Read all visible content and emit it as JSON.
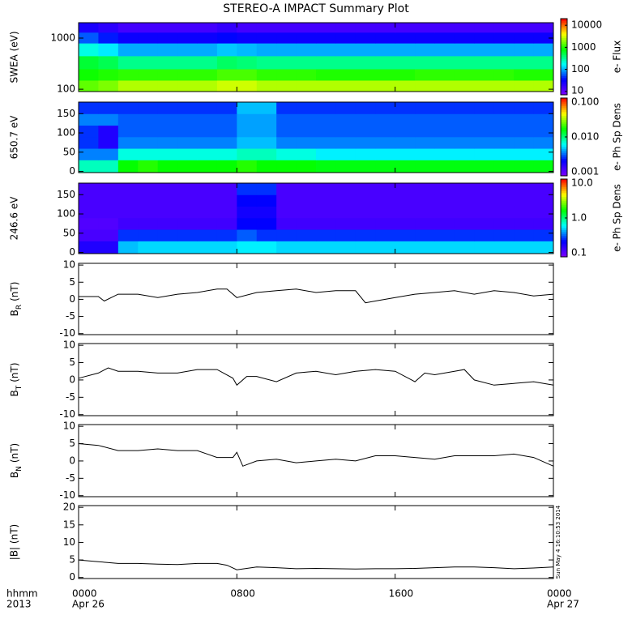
{
  "title": "STEREO-A IMPACT Summary Plot",
  "colormap": [
    "#8000ff",
    "#0000ff",
    "#00ffff",
    "#00ff00",
    "#ffff00",
    "#ff0000"
  ],
  "x_axis": {
    "xlim": [
      0,
      24
    ],
    "xticks": [
      {
        "value": 0,
        "label": "0000"
      },
      {
        "value": 8,
        "label": "0800"
      },
      {
        "value": 16,
        "label": "1600"
      },
      {
        "value": 24,
        "label": "0000"
      }
    ],
    "dates": [
      {
        "value": 0,
        "label": "Apr 26"
      },
      {
        "value": 24,
        "label": "Apr 27"
      }
    ],
    "row_labels": [
      "hhmm",
      "2013"
    ]
  },
  "timestamp": "Sun May  4 16:10:53 2014",
  "chart_data": [
    {
      "type": "heatmap",
      "ylabel": "SWEA (eV)",
      "log_y": true,
      "ylim": [
        90,
        2000
      ],
      "yticks": [
        100,
        1000
      ],
      "x_bins": [
        0,
        1,
        2,
        3,
        4,
        5,
        6,
        7,
        8,
        9,
        10,
        11,
        12,
        13,
        14,
        15,
        16,
        17,
        18,
        19,
        20,
        21,
        22,
        23,
        24
      ],
      "y_bins": [
        90,
        150,
        250,
        450,
        800,
        1300,
        2000
      ],
      "colorbar": {
        "label": "e- Flux",
        "lim": [
          7,
          20000
        ],
        "ticks": [
          10,
          100,
          1000,
          10000
        ]
      },
      "values": [
        [
          1500,
          1800,
          2500,
          2500,
          2500,
          2500,
          2500,
          3000,
          3000,
          2500,
          2500,
          2500,
          2500,
          2500,
          2500,
          2500,
          2500,
          2500,
          2500,
          2500,
          2500,
          2500,
          2500,
          2500
        ],
        [
          900,
          1000,
          1100,
          1100,
          1100,
          1100,
          1100,
          1300,
          1300,
          1100,
          1100,
          1100,
          1000,
          1000,
          1000,
          1000,
          1000,
          1100,
          1100,
          1100,
          1100,
          1100,
          1000,
          1000
        ],
        [
          600,
          500,
          350,
          350,
          350,
          350,
          350,
          450,
          400,
          350,
          350,
          350,
          350,
          350,
          350,
          350,
          350,
          350,
          350,
          350,
          350,
          350,
          350,
          350
        ],
        [
          200,
          150,
          100,
          100,
          100,
          100,
          100,
          120,
          110,
          100,
          100,
          100,
          100,
          100,
          100,
          100,
          100,
          100,
          100,
          100,
          100,
          100,
          100,
          100
        ],
        [
          60,
          40,
          30,
          30,
          30,
          30,
          30,
          35,
          30,
          30,
          30,
          30,
          30,
          30,
          30,
          30,
          30,
          30,
          30,
          30,
          30,
          30,
          30,
          30
        ],
        [
          25,
          20,
          15,
          15,
          15,
          15,
          15,
          18,
          15,
          15,
          15,
          15,
          15,
          15,
          15,
          15,
          15,
          15,
          15,
          15,
          15,
          15,
          15,
          15
        ]
      ]
    },
    {
      "type": "heatmap",
      "ylabel": "650.7 eV",
      "ylim": [
        -3,
        180
      ],
      "yticks": [
        0,
        50,
        100,
        150
      ],
      "x_bins": [
        0,
        1,
        2,
        3,
        4,
        5,
        6,
        7,
        8,
        9,
        10,
        11,
        12,
        13,
        14,
        15,
        16,
        17,
        18,
        19,
        20,
        21,
        22,
        23,
        24
      ],
      "y_bins": [
        -3,
        30,
        60,
        90,
        120,
        150,
        180
      ],
      "colorbar": {
        "label": "e- Ph Sp Dens",
        "lim": [
          0.001,
          0.1
        ],
        "ticks": [
          {
            "value": 0.001,
            "label": "0.001"
          },
          {
            "value": 0.01,
            "label": "0.010"
          },
          {
            "value": 0.1,
            "label": "0.100"
          }
        ]
      },
      "values": [
        [
          0.008,
          0.008,
          0.016,
          0.018,
          0.016,
          0.016,
          0.016,
          0.016,
          0.018,
          0.016,
          0.016,
          0.016,
          0.015,
          0.015,
          0.015,
          0.015,
          0.015,
          0.015,
          0.015,
          0.015,
          0.015,
          0.015,
          0.015,
          0.015
        ],
        [
          0.004,
          0.004,
          0.007,
          0.007,
          0.007,
          0.007,
          0.007,
          0.007,
          0.008,
          0.008,
          0.007,
          0.007,
          0.006,
          0.006,
          0.006,
          0.006,
          0.006,
          0.006,
          0.006,
          0.006,
          0.006,
          0.006,
          0.006,
          0.006
        ],
        [
          0.003,
          0.002,
          0.004,
          0.004,
          0.004,
          0.004,
          0.004,
          0.004,
          0.005,
          0.005,
          0.004,
          0.004,
          0.004,
          0.004,
          0.004,
          0.004,
          0.004,
          0.004,
          0.004,
          0.004,
          0.004,
          0.004,
          0.004,
          0.004
        ],
        [
          0.003,
          0.002,
          0.0035,
          0.0035,
          0.0035,
          0.0035,
          0.0035,
          0.0035,
          0.0045,
          0.0045,
          0.0035,
          0.0035,
          0.0035,
          0.0035,
          0.0035,
          0.0035,
          0.0035,
          0.0035,
          0.0035,
          0.0035,
          0.0035,
          0.0035,
          0.0035,
          0.0035
        ],
        [
          0.004,
          0.004,
          0.0035,
          0.0035,
          0.0035,
          0.0035,
          0.0035,
          0.0035,
          0.0045,
          0.0045,
          0.0035,
          0.0035,
          0.0035,
          0.0035,
          0.0035,
          0.0035,
          0.0035,
          0.0035,
          0.0035,
          0.0035,
          0.0035,
          0.0035,
          0.0035,
          0.0035
        ],
        [
          0.003,
          0.003,
          0.003,
          0.003,
          0.003,
          0.003,
          0.003,
          0.003,
          0.005,
          0.005,
          0.003,
          0.003,
          0.003,
          0.003,
          0.003,
          0.003,
          0.003,
          0.003,
          0.003,
          0.003,
          0.003,
          0.003,
          0.003,
          0.003
        ]
      ]
    },
    {
      "type": "heatmap",
      "ylabel": "246.6 eV",
      "ylim": [
        -3,
        180
      ],
      "yticks": [
        0,
        50,
        100,
        150
      ],
      "x_bins": [
        0,
        1,
        2,
        3,
        4,
        5,
        6,
        7,
        8,
        9,
        10,
        11,
        12,
        13,
        14,
        15,
        16,
        17,
        18,
        19,
        20,
        21,
        22,
        23,
        24
      ],
      "y_bins": [
        -3,
        30,
        60,
        90,
        120,
        150,
        180
      ],
      "colorbar": {
        "label": "e- Ph Sp Dens",
        "lim": [
          0.1,
          10
        ],
        "ticks": [
          0.1,
          {
            "value": 1,
            "label": "1.0"
          },
          {
            "value": 10,
            "label": "10.0"
          }
        ]
      },
      "values": [
        [
          0.2,
          0.2,
          0.5,
          0.55,
          0.55,
          0.55,
          0.55,
          0.55,
          0.6,
          0.6,
          0.55,
          0.55,
          0.55,
          0.55,
          0.55,
          0.55,
          0.55,
          0.55,
          0.55,
          0.55,
          0.55,
          0.55,
          0.55,
          0.55
        ],
        [
          0.15,
          0.15,
          0.3,
          0.3,
          0.3,
          0.3,
          0.3,
          0.3,
          0.35,
          0.3,
          0.3,
          0.3,
          0.3,
          0.3,
          0.3,
          0.3,
          0.3,
          0.3,
          0.3,
          0.3,
          0.3,
          0.3,
          0.3,
          0.3
        ],
        [
          0.14,
          0.14,
          0.16,
          0.16,
          0.16,
          0.16,
          0.16,
          0.16,
          0.25,
          0.25,
          0.16,
          0.16,
          0.16,
          0.16,
          0.16,
          0.16,
          0.16,
          0.16,
          0.16,
          0.16,
          0.16,
          0.16,
          0.16,
          0.16
        ],
        [
          0.15,
          0.15,
          0.15,
          0.15,
          0.15,
          0.15,
          0.15,
          0.15,
          0.22,
          0.22,
          0.15,
          0.15,
          0.15,
          0.15,
          0.15,
          0.15,
          0.15,
          0.15,
          0.15,
          0.15,
          0.15,
          0.15,
          0.15,
          0.15
        ],
        [
          0.15,
          0.15,
          0.15,
          0.15,
          0.15,
          0.15,
          0.15,
          0.15,
          0.25,
          0.25,
          0.15,
          0.15,
          0.15,
          0.15,
          0.15,
          0.15,
          0.15,
          0.15,
          0.15,
          0.15,
          0.15,
          0.15,
          0.15,
          0.15
        ],
        [
          0.15,
          0.15,
          0.15,
          0.15,
          0.15,
          0.15,
          0.15,
          0.15,
          0.3,
          0.3,
          0.15,
          0.15,
          0.15,
          0.15,
          0.15,
          0.15,
          0.15,
          0.15,
          0.15,
          0.15,
          0.15,
          0.15,
          0.15,
          0.15
        ]
      ]
    },
    {
      "type": "line",
      "ylabel": {
        "main": "B",
        "sub": "R",
        "unit": "(nT)"
      },
      "ylim": [
        -10.3,
        10.5
      ],
      "yticks": [
        -10,
        -5,
        0,
        5,
        10
      ],
      "color": "#000000",
      "x": [
        0,
        1,
        1.3,
        2,
        3,
        4,
        5,
        6,
        7,
        7.5,
        8,
        9,
        10,
        11,
        12,
        13,
        14,
        14.5,
        15,
        16,
        17,
        18,
        19,
        20,
        21,
        22,
        23,
        24
      ],
      "values": [
        0.8,
        0.8,
        -0.5,
        1.5,
        1.5,
        0.5,
        1.5,
        2,
        3,
        3,
        0.5,
        2,
        2.5,
        3,
        2,
        2.5,
        2.5,
        -1,
        -0.5,
        0.5,
        1.5,
        2,
        2.5,
        1.5,
        2.5,
        2,
        1,
        1.5
      ]
    },
    {
      "type": "line",
      "ylabel": {
        "main": "B",
        "sub": "T",
        "unit": "(nT)"
      },
      "ylim": [
        -10.3,
        10.5
      ],
      "yticks": [
        -10,
        -5,
        0,
        5,
        10
      ],
      "color": "#000000",
      "x": [
        0,
        1,
        1.5,
        2,
        3,
        4,
        5,
        6,
        7,
        7.8,
        8,
        8.5,
        9,
        10,
        11,
        12,
        13,
        14,
        15,
        16,
        17,
        17.5,
        18,
        19,
        19.5,
        20,
        21,
        22,
        23,
        24
      ],
      "values": [
        0.5,
        2,
        3.5,
        2.5,
        2.5,
        2,
        2,
        3,
        3,
        0.5,
        -1.5,
        1,
        1,
        -0.5,
        2,
        2.5,
        1.5,
        2.5,
        3,
        2.5,
        -0.5,
        2,
        1.5,
        2.5,
        3,
        0,
        -1.5,
        -1,
        -0.5,
        -1.5
      ]
    },
    {
      "type": "line",
      "ylabel": {
        "main": "B",
        "sub": "N",
        "unit": "(nT)"
      },
      "ylim": [
        -10.3,
        10.5
      ],
      "yticks": [
        -10,
        -5,
        0,
        5,
        10
      ],
      "color": "#000000",
      "x": [
        0,
        1,
        2,
        3,
        4,
        5,
        6,
        7,
        7.8,
        8,
        8.3,
        9,
        10,
        11,
        12,
        13,
        14,
        15,
        16,
        17,
        18,
        19,
        20,
        21,
        22,
        23,
        24
      ],
      "values": [
        5,
        4.5,
        3,
        3,
        3.5,
        3,
        3,
        1,
        1,
        2.5,
        -1.5,
        0,
        0.5,
        -0.5,
        0,
        0.5,
        0,
        1.5,
        1.5,
        1,
        0.5,
        1.5,
        1.5,
        1.5,
        2,
        1,
        -1.5
      ]
    },
    {
      "type": "line",
      "ylabel": "|B| (nT)",
      "ylim": [
        -0.3,
        20.5
      ],
      "yticks": [
        0,
        5,
        10,
        15,
        20
      ],
      "color": "#000000",
      "x": [
        0,
        1,
        2,
        3,
        4,
        5,
        6,
        7,
        7.5,
        8,
        9,
        10,
        11,
        12,
        13,
        14,
        15,
        16,
        17,
        18,
        19,
        20,
        21,
        22,
        23,
        24
      ],
      "values": [
        5,
        4.5,
        4,
        4,
        3.8,
        3.7,
        4,
        4,
        3.5,
        2.2,
        3,
        2.8,
        2.5,
        2.6,
        2.5,
        2.4,
        2.5,
        2.5,
        2.6,
        2.8,
        3,
        3,
        2.8,
        2.5,
        2.7,
        3
      ]
    }
  ]
}
